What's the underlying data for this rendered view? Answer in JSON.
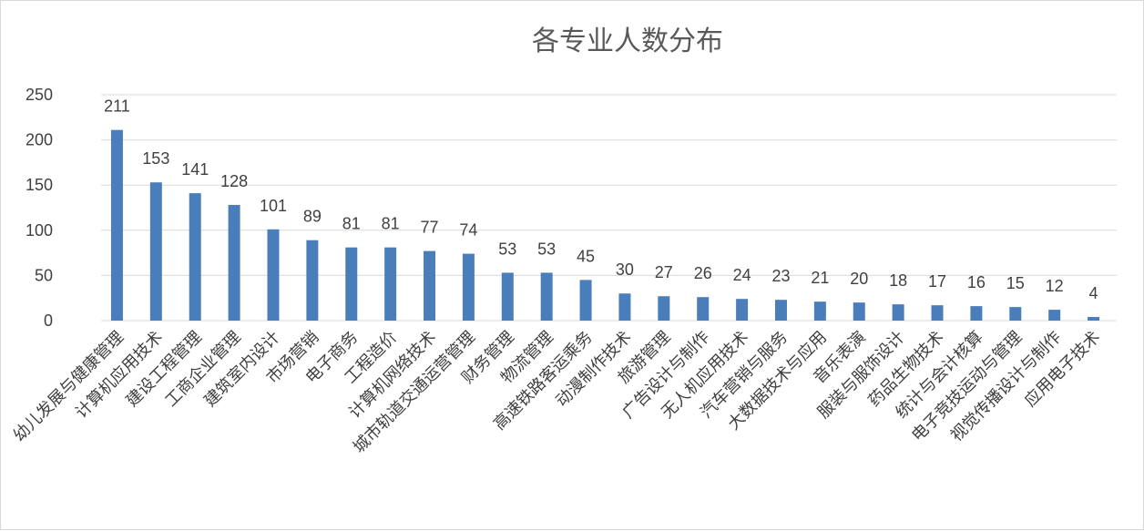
{
  "chart_data": {
    "type": "bar",
    "title": "各专业人数分布",
    "xlabel": "",
    "ylabel": "",
    "ylim": [
      0,
      250
    ],
    "yticks": [
      0,
      50,
      100,
      150,
      200,
      250
    ],
    "grid": true,
    "legend": "none",
    "bar_color": "#4a7ebb",
    "categories": [
      "幼儿发展与健康管理",
      "计算机应用技术",
      "建设工程管理",
      "工商企业管理",
      "建筑室内设计",
      "市场营销",
      "电子商务",
      "工程造价",
      "计算机网络技术",
      "城市轨道交通运营管理",
      "财务管理",
      "物流管理",
      "高速铁路客运乘务",
      "动漫制作技术",
      "旅游管理",
      "广告设计与制作",
      "无人机应用技术",
      "汽车营销与服务",
      "大数据技术与应用",
      "音乐表演",
      "服装与服饰设计",
      "药品生物技术",
      "统计与会计核算",
      "电子竞技运动与管理",
      "视觉传播设计与制作",
      "应用电子技术"
    ],
    "values": [
      211,
      153,
      141,
      128,
      101,
      89,
      81,
      81,
      77,
      74,
      53,
      53,
      45,
      30,
      27,
      26,
      24,
      23,
      21,
      20,
      18,
      17,
      16,
      15,
      12,
      4
    ]
  }
}
